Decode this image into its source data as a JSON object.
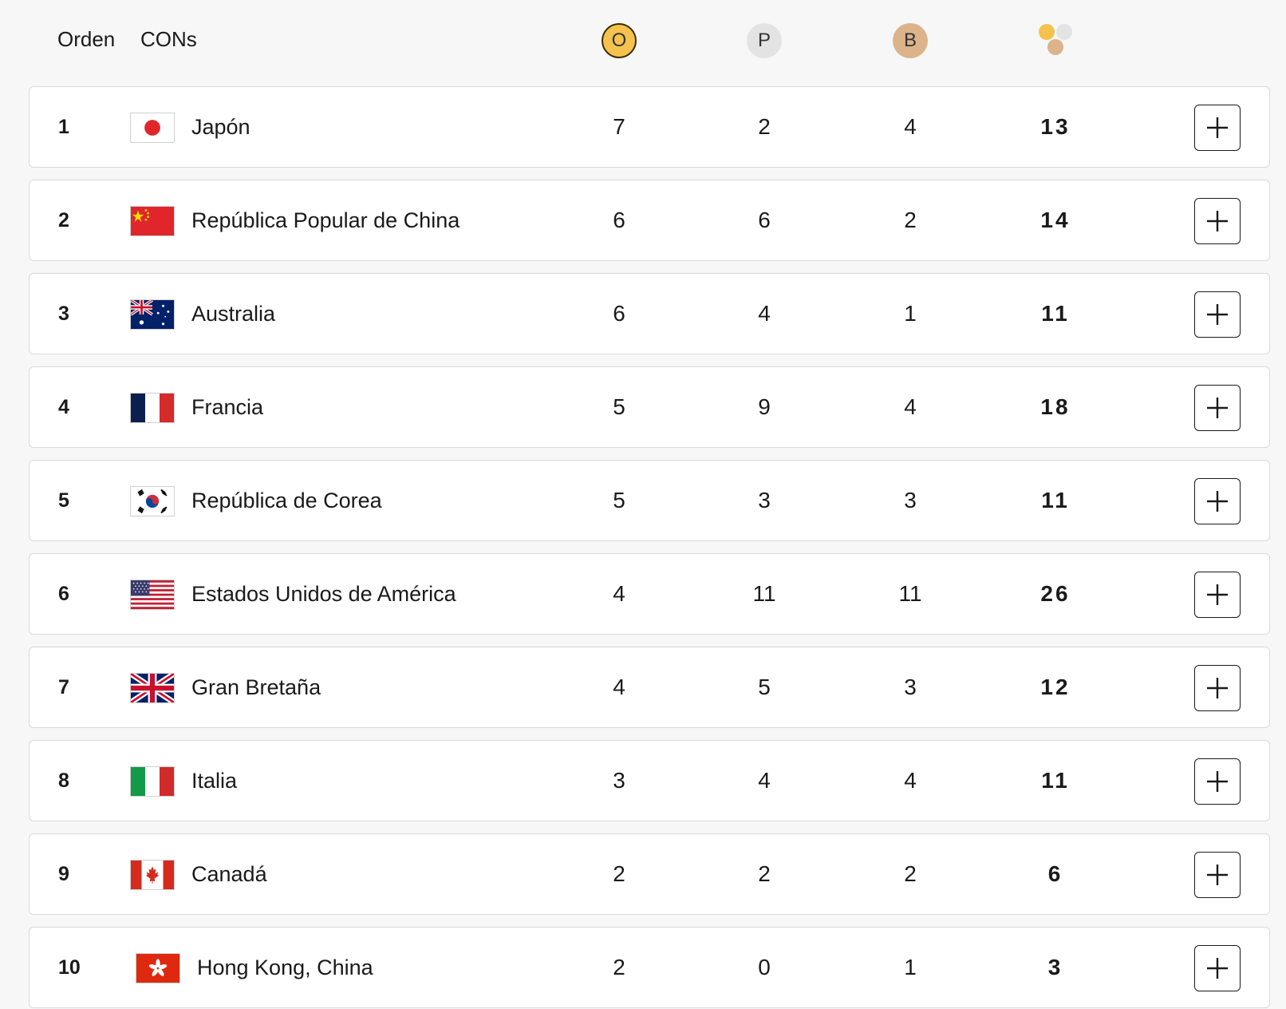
{
  "header": {
    "orden": "Orden",
    "cons": "CONs",
    "gold": "O",
    "silver": "P",
    "bronze": "B",
    "total_icon": "medals-total-icon"
  },
  "colors": {
    "gold": "#f5c24d",
    "silver": "#e3e3e3",
    "bronze": "#dcb38a"
  },
  "rows": [
    {
      "rank": "1",
      "flag": "japan",
      "name": "Japón",
      "gold": "7",
      "silver": "2",
      "bronze": "4",
      "total": "13"
    },
    {
      "rank": "2",
      "flag": "china",
      "name": "República Popular de China",
      "gold": "6",
      "silver": "6",
      "bronze": "2",
      "total": "14"
    },
    {
      "rank": "3",
      "flag": "australia",
      "name": "Australia",
      "gold": "6",
      "silver": "4",
      "bronze": "1",
      "total": "11"
    },
    {
      "rank": "4",
      "flag": "france",
      "name": "Francia",
      "gold": "5",
      "silver": "9",
      "bronze": "4",
      "total": "18"
    },
    {
      "rank": "5",
      "flag": "korea",
      "name": "República de Corea",
      "gold": "5",
      "silver": "3",
      "bronze": "3",
      "total": "11"
    },
    {
      "rank": "6",
      "flag": "usa",
      "name": "Estados Unidos de América",
      "gold": "4",
      "silver": "11",
      "bronze": "11",
      "total": "26"
    },
    {
      "rank": "7",
      "flag": "uk",
      "name": "Gran Bretaña",
      "gold": "4",
      "silver": "5",
      "bronze": "3",
      "total": "12"
    },
    {
      "rank": "8",
      "flag": "italy",
      "name": "Italia",
      "gold": "3",
      "silver": "4",
      "bronze": "4",
      "total": "11"
    },
    {
      "rank": "9",
      "flag": "canada",
      "name": "Canadá",
      "gold": "2",
      "silver": "2",
      "bronze": "2",
      "total": "6"
    },
    {
      "rank": "10",
      "flag": "hongkong",
      "name": "Hong Kong, China",
      "gold": "2",
      "silver": "0",
      "bronze": "1",
      "total": "3"
    }
  ],
  "expand_icon": "plus-icon"
}
